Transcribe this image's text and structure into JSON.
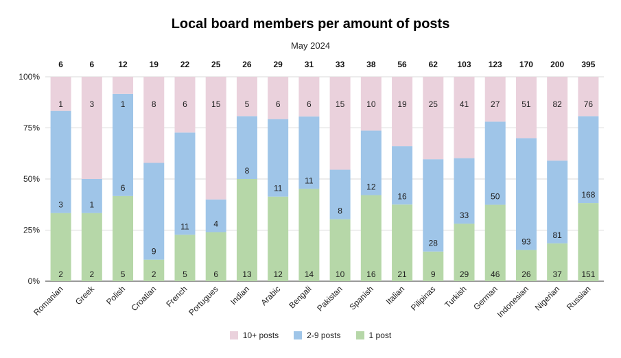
{
  "chart_data": {
    "type": "bar",
    "stacked": "percent",
    "title": "Local board members per amount of posts",
    "subtitle": "May 2024",
    "categories": [
      "Romanian",
      "Greek",
      "Polish",
      "Croatian",
      "French",
      "Portugues",
      "Indian",
      "Arabic",
      "Bengali",
      "Pakistan",
      "Spanish",
      "Italian",
      "Pilipinas",
      "Turkish",
      "German",
      "Indonesian",
      "Nigerian",
      "Russian"
    ],
    "totals": [
      6,
      6,
      12,
      19,
      22,
      25,
      26,
      29,
      31,
      33,
      38,
      56,
      62,
      103,
      123,
      170,
      200,
      395
    ],
    "series": [
      {
        "name": "1 post",
        "color": "#b6d7a8",
        "values": [
          2,
          2,
          5,
          2,
          5,
          6,
          13,
          12,
          14,
          10,
          16,
          21,
          9,
          29,
          46,
          26,
          37,
          151
        ]
      },
      {
        "name": "2-9 posts",
        "color": "#9fc5e8",
        "values": [
          3,
          1,
          6,
          9,
          11,
          4,
          8,
          11,
          11,
          8,
          12,
          16,
          28,
          33,
          50,
          93,
          81,
          168
        ]
      },
      {
        "name": "10+ posts",
        "color": "#ead1dc",
        "values": [
          1,
          3,
          1,
          8,
          6,
          15,
          5,
          6,
          6,
          15,
          10,
          19,
          25,
          41,
          27,
          51,
          82,
          76
        ]
      }
    ],
    "y_ticks": [
      "0%",
      "25%",
      "50%",
      "75%",
      "100%"
    ],
    "ylim": [
      0,
      100
    ],
    "grid": true,
    "legend_position": "bottom"
  }
}
